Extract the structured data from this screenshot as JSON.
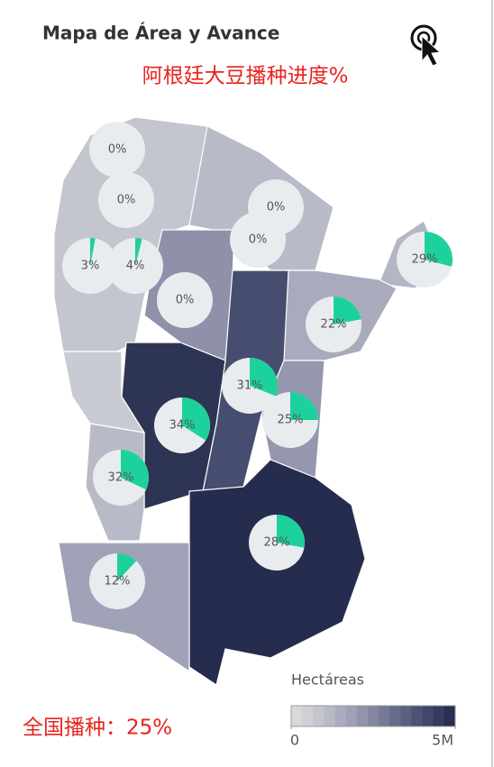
{
  "chart_data": {
    "type": "pie-map",
    "title": "Mapa de Área y Avance",
    "subtitle": "阿根廷大豆播种进度%",
    "values": [
      0,
      0,
      0,
      0,
      29,
      3,
      4,
      0,
      22,
      31,
      34,
      25,
      32,
      28,
      12
    ],
    "value_labels": [
      "0%",
      "0%",
      "0%",
      "0%",
      "29%",
      "3%",
      "4%",
      "0%",
      "22%",
      "31%",
      "34%",
      "25%",
      "32%",
      "28%",
      "12%"
    ],
    "color": "#1dd19d",
    "legend_title": "Hectáreas",
    "legend_lim": [
      0,
      5000000
    ],
    "legend_ticks": [
      0,
      {
        "value": 5000000,
        "label": "5M"
      }
    ],
    "national": "全国播种：25%"
  }
}
